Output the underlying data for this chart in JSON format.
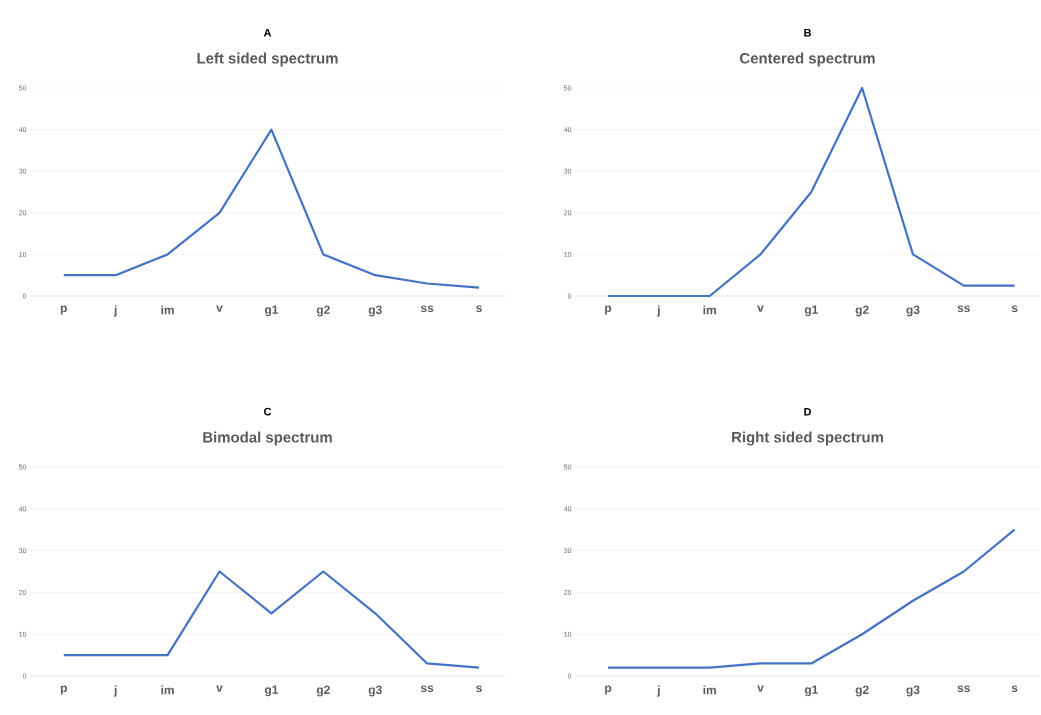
{
  "chart_data": [
    {
      "type": "line",
      "title": "Left sided spectrum",
      "annotations": [
        "A"
      ],
      "categories": [
        "p",
        "j",
        "im",
        "v",
        "g1",
        "g2",
        "g3",
        "ss",
        "s"
      ],
      "values": [
        5,
        5,
        10,
        20,
        40,
        10,
        5,
        3,
        2
      ],
      "color": "#4472c4",
      "ylim": [
        0,
        50
      ],
      "yticks": [
        0,
        10,
        20,
        30,
        40,
        50
      ],
      "grid": "y"
    },
    {
      "type": "line",
      "title": "Centered spectrum",
      "annotations": [
        "B"
      ],
      "categories": [
        "p",
        "j",
        "im",
        "v",
        "g1",
        "g2",
        "g3",
        "ss",
        "s"
      ],
      "values": [
        0,
        0,
        0,
        10,
        25,
        50,
        10,
        2.5,
        2.5
      ],
      "color": "#4472c4",
      "ylim": [
        0,
        50
      ],
      "yticks": [
        0,
        10,
        20,
        30,
        40,
        50
      ],
      "grid": "y"
    },
    {
      "type": "line",
      "title": "Bimodal spectrum",
      "annotations": [
        "C"
      ],
      "categories": [
        "p",
        "j",
        "im",
        "v",
        "g1",
        "g2",
        "g3",
        "ss",
        "s"
      ],
      "values": [
        5,
        5,
        5,
        25,
        15,
        25,
        15,
        3,
        2
      ],
      "color": "#4472c4",
      "ylim": [
        0,
        50
      ],
      "yticks": [
        0,
        10,
        20,
        30,
        40,
        50
      ],
      "grid": "y"
    },
    {
      "type": "line",
      "title": "Right sided spectrum",
      "annotations": [
        "D"
      ],
      "categories": [
        "p",
        "j",
        "im",
        "v",
        "g1",
        "g2",
        "g3",
        "ss",
        "s"
      ],
      "values": [
        2,
        2,
        2,
        3,
        3,
        10,
        18,
        25,
        35
      ],
      "color": "#4472c4",
      "ylim": [
        0,
        50
      ],
      "yticks": [
        0,
        10,
        20,
        30,
        40,
        50
      ],
      "grid": "y"
    }
  ]
}
